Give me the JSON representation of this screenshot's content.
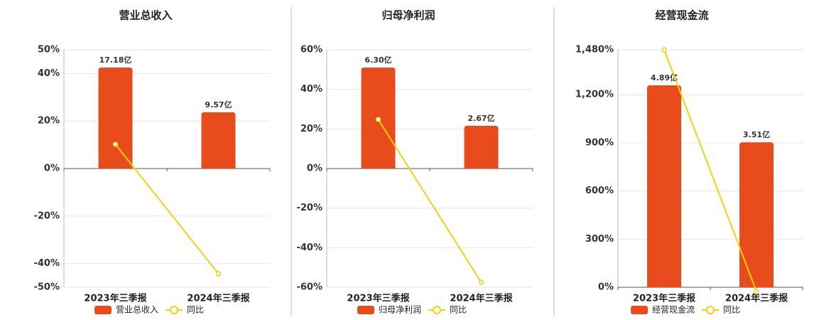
{
  "chart_data": [
    {
      "type": "bar-line",
      "title": "营业总收入",
      "categories": [
        "2023年三季报",
        "2024年三季报"
      ],
      "series": [
        {
          "name": "营业总收入",
          "color": "#e84c1c",
          "axis": "y2",
          "values": [
            17.18,
            9.57
          ],
          "value_labels": [
            "17.18亿",
            "9.57亿"
          ]
        },
        {
          "name": "同比",
          "color": "#f5d10d",
          "values": [
            10.2,
            -44.3
          ]
        }
      ],
      "ylim": [
        -50,
        50
      ],
      "yticks": [
        {
          "value": -50,
          "label": "-50%"
        },
        {
          "value": -40,
          "label": "-40%"
        },
        {
          "value": -20,
          "label": "-20%"
        },
        {
          "value": 0,
          "label": "0%"
        },
        {
          "value": 20,
          "label": "20%"
        },
        {
          "value": 40,
          "label": "40%"
        },
        {
          "value": 50,
          "label": "50%"
        }
      ],
      "y2lim": [
        -20.2,
        20.2
      ],
      "grid": true,
      "legend": "bottom"
    },
    {
      "type": "bar-line",
      "title": "归母净利润",
      "categories": [
        "2023年三季报",
        "2024年三季报"
      ],
      "series": [
        {
          "name": "归母净利润",
          "color": "#e84c1c",
          "axis": "y2",
          "values": [
            6.3,
            2.67
          ],
          "value_labels": [
            "6.30亿",
            "2.67亿"
          ]
        },
        {
          "name": "同比",
          "color": "#f5d10d",
          "values": [
            24.8,
            -57.5
          ]
        }
      ],
      "ylim": [
        -60,
        60
      ],
      "yticks": [
        {
          "value": -60,
          "label": "-60%"
        },
        {
          "value": -40,
          "label": "-40%"
        },
        {
          "value": -20,
          "label": "-20%"
        },
        {
          "value": 0,
          "label": "0%"
        },
        {
          "value": 20,
          "label": "20%"
        },
        {
          "value": 40,
          "label": "40%"
        },
        {
          "value": 60,
          "label": "60%"
        }
      ],
      "y2lim": [
        -7.41,
        7.41
      ],
      "grid": true,
      "legend": "bottom"
    },
    {
      "type": "bar-line",
      "title": "经营现金流",
      "categories": [
        "2023年三季报",
        "2024年三季报"
      ],
      "series": [
        {
          "name": "经营现金流",
          "color": "#e84c1c",
          "axis": "y2",
          "values": [
            4.89,
            3.51
          ],
          "value_labels": [
            "4.89亿",
            "3.51亿"
          ]
        },
        {
          "name": "同比",
          "color": "#f5d10d",
          "values": [
            1480,
            -27
          ]
        }
      ],
      "ylim": [
        0,
        1480
      ],
      "yticks": [
        {
          "value": 0,
          "label": "0%"
        },
        {
          "value": 300,
          "label": "300%"
        },
        {
          "value": 600,
          "label": "600%"
        },
        {
          "value": 900,
          "label": "900%"
        },
        {
          "value": 1200,
          "label": "1,200%"
        },
        {
          "value": 1480,
          "label": "1,480%"
        }
      ],
      "y2lim": [
        0,
        5.75
      ],
      "grid": true,
      "legend": "bottom"
    }
  ]
}
